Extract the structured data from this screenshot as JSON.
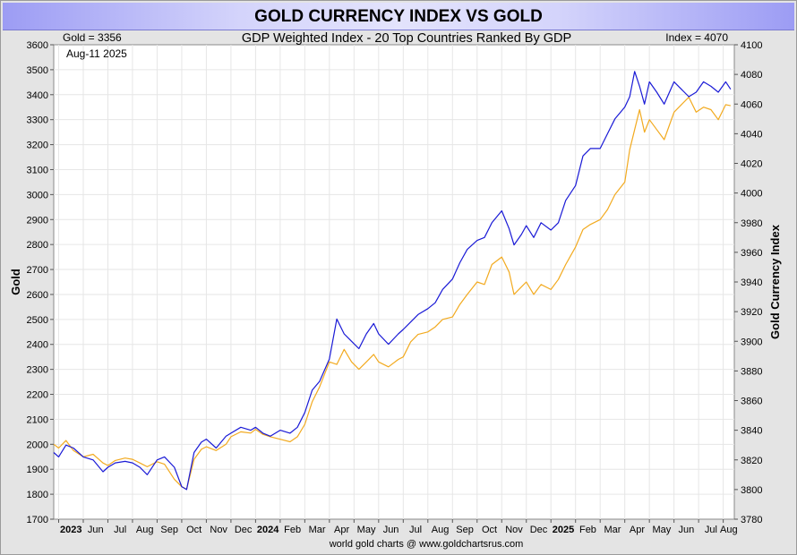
{
  "chart_data": {
    "type": "line",
    "title": "GOLD CURRENCY INDEX VS GOLD",
    "subtitle": "GDP Weighted Index - 20 Top Countries Ranked By GDP",
    "readout_left": "Gold = 3356",
    "readout_right": "Index = 4070",
    "date_label": "Aug-11  2025",
    "footer": "world gold charts @ www.goldchartsrus.com",
    "ylabel_left": "Gold",
    "ylabel_right": "Gold Currency Index",
    "ylim_left": [
      1700,
      3600
    ],
    "ylim_right": [
      3780,
      4100
    ],
    "y_ticks_left": [
      "1700",
      "1800",
      "1900",
      "2000",
      "2100",
      "2200",
      "2300",
      "2400",
      "2500",
      "2600",
      "2700",
      "2800",
      "2900",
      "3000",
      "3100",
      "3200",
      "3300",
      "3400",
      "3500",
      "3600"
    ],
    "y_ticks_right": [
      "3780",
      "3800",
      "3820",
      "3840",
      "3860",
      "3880",
      "3900",
      "3920",
      "3940",
      "3960",
      "3980",
      "4000",
      "4020",
      "4040",
      "4060",
      "4080",
      "4100"
    ],
    "x_ticks": [
      {
        "label": "2023",
        "bold": true,
        "t": 0.0
      },
      {
        "label": "Jun",
        "bold": false,
        "t": 1.0
      },
      {
        "label": "Jul",
        "bold": false,
        "t": 2.0
      },
      {
        "label": "Aug",
        "bold": false,
        "t": 3.0
      },
      {
        "label": "Sep",
        "bold": false,
        "t": 4.0
      },
      {
        "label": "Oct",
        "bold": false,
        "t": 5.0
      },
      {
        "label": "Nov",
        "bold": false,
        "t": 6.0
      },
      {
        "label": "Dec",
        "bold": false,
        "t": 7.0
      },
      {
        "label": "2024",
        "bold": true,
        "t": 8.0
      },
      {
        "label": "Feb",
        "bold": false,
        "t": 9.0
      },
      {
        "label": "Mar",
        "bold": false,
        "t": 10.0
      },
      {
        "label": "Apr",
        "bold": false,
        "t": 11.0
      },
      {
        "label": "May",
        "bold": false,
        "t": 12.0
      },
      {
        "label": "Jun",
        "bold": false,
        "t": 13.0
      },
      {
        "label": "Jul",
        "bold": false,
        "t": 14.0
      },
      {
        "label": "Aug",
        "bold": false,
        "t": 15.0
      },
      {
        "label": "Sep",
        "bold": false,
        "t": 16.0
      },
      {
        "label": "Oct",
        "bold": false,
        "t": 17.0
      },
      {
        "label": "Nov",
        "bold": false,
        "t": 18.0
      },
      {
        "label": "Dec",
        "bold": false,
        "t": 19.0
      },
      {
        "label": "2025",
        "bold": true,
        "t": 20.0
      },
      {
        "label": "Feb",
        "bold": false,
        "t": 21.0
      },
      {
        "label": "Mar",
        "bold": false,
        "t": 22.0
      },
      {
        "label": "Apr",
        "bold": false,
        "t": 23.0
      },
      {
        "label": "May",
        "bold": false,
        "t": 24.0
      },
      {
        "label": "Jun",
        "bold": false,
        "t": 25.0
      },
      {
        "label": "Jul",
        "bold": false,
        "t": 26.0
      },
      {
        "label": "Aug",
        "bold": false,
        "t": 27.0
      }
    ],
    "x_range": [
      -0.2,
      27.45
    ],
    "series": [
      {
        "name": "",
        "axis": "left",
        "color": "#f2aa1f",
        "points": [
          [
            -0.2,
            2000
          ],
          [
            0.0,
            1985
          ],
          [
            0.3,
            2015
          ],
          [
            0.6,
            1975
          ],
          [
            1.0,
            1950
          ],
          [
            1.4,
            1960
          ],
          [
            1.8,
            1925
          ],
          [
            2.0,
            1915
          ],
          [
            2.3,
            1935
          ],
          [
            2.7,
            1945
          ],
          [
            3.0,
            1940
          ],
          [
            3.3,
            1925
          ],
          [
            3.6,
            1910
          ],
          [
            4.0,
            1930
          ],
          [
            4.3,
            1920
          ],
          [
            4.7,
            1860
          ],
          [
            5.0,
            1830
          ],
          [
            5.2,
            1820
          ],
          [
            5.5,
            1940
          ],
          [
            5.8,
            1980
          ],
          [
            6.0,
            1990
          ],
          [
            6.4,
            1975
          ],
          [
            6.8,
            2000
          ],
          [
            7.0,
            2030
          ],
          [
            7.4,
            2050
          ],
          [
            7.8,
            2045
          ],
          [
            8.0,
            2060
          ],
          [
            8.3,
            2040
          ],
          [
            8.6,
            2030
          ],
          [
            9.0,
            2020
          ],
          [
            9.4,
            2010
          ],
          [
            9.7,
            2030
          ],
          [
            10.0,
            2080
          ],
          [
            10.3,
            2170
          ],
          [
            10.6,
            2230
          ],
          [
            11.0,
            2330
          ],
          [
            11.3,
            2320
          ],
          [
            11.6,
            2380
          ],
          [
            11.9,
            2330
          ],
          [
            12.2,
            2300
          ],
          [
            12.5,
            2330
          ],
          [
            12.8,
            2360
          ],
          [
            13.0,
            2330
          ],
          [
            13.4,
            2310
          ],
          [
            13.8,
            2340
          ],
          [
            14.0,
            2350
          ],
          [
            14.3,
            2410
          ],
          [
            14.6,
            2440
          ],
          [
            15.0,
            2450
          ],
          [
            15.3,
            2470
          ],
          [
            15.6,
            2500
          ],
          [
            16.0,
            2510
          ],
          [
            16.3,
            2560
          ],
          [
            16.6,
            2600
          ],
          [
            17.0,
            2650
          ],
          [
            17.3,
            2640
          ],
          [
            17.6,
            2720
          ],
          [
            18.0,
            2750
          ],
          [
            18.3,
            2690
          ],
          [
            18.5,
            2600
          ],
          [
            18.8,
            2630
          ],
          [
            19.0,
            2650
          ],
          [
            19.3,
            2600
          ],
          [
            19.6,
            2640
          ],
          [
            20.0,
            2620
          ],
          [
            20.3,
            2660
          ],
          [
            20.6,
            2720
          ],
          [
            21.0,
            2790
          ],
          [
            21.3,
            2860
          ],
          [
            21.6,
            2880
          ],
          [
            22.0,
            2900
          ],
          [
            22.3,
            2940
          ],
          [
            22.6,
            3000
          ],
          [
            23.0,
            3050
          ],
          [
            23.2,
            3180
          ],
          [
            23.4,
            3260
          ],
          [
            23.6,
            3340
          ],
          [
            23.8,
            3250
          ],
          [
            24.0,
            3300
          ],
          [
            24.3,
            3260
          ],
          [
            24.6,
            3220
          ],
          [
            25.0,
            3330
          ],
          [
            25.3,
            3360
          ],
          [
            25.6,
            3390
          ],
          [
            25.9,
            3330
          ],
          [
            26.2,
            3350
          ],
          [
            26.5,
            3340
          ],
          [
            26.8,
            3300
          ],
          [
            27.1,
            3360
          ],
          [
            27.3,
            3356
          ]
        ]
      },
      {
        "name": "",
        "axis": "right",
        "color": "#1a1ad6",
        "points": [
          [
            -0.2,
            3825
          ],
          [
            0.0,
            3822
          ],
          [
            0.3,
            3830
          ],
          [
            0.6,
            3828
          ],
          [
            1.0,
            3822
          ],
          [
            1.4,
            3820
          ],
          [
            1.8,
            3812
          ],
          [
            2.0,
            3815
          ],
          [
            2.3,
            3818
          ],
          [
            2.7,
            3819
          ],
          [
            3.0,
            3818
          ],
          [
            3.3,
            3815
          ],
          [
            3.6,
            3810
          ],
          [
            4.0,
            3820
          ],
          [
            4.3,
            3822
          ],
          [
            4.7,
            3815
          ],
          [
            5.0,
            3802
          ],
          [
            5.2,
            3800
          ],
          [
            5.5,
            3825
          ],
          [
            5.8,
            3832
          ],
          [
            6.0,
            3834
          ],
          [
            6.4,
            3828
          ],
          [
            6.8,
            3836
          ],
          [
            7.0,
            3838
          ],
          [
            7.4,
            3842
          ],
          [
            7.8,
            3840
          ],
          [
            8.0,
            3842
          ],
          [
            8.3,
            3838
          ],
          [
            8.6,
            3836
          ],
          [
            9.0,
            3840
          ],
          [
            9.4,
            3838
          ],
          [
            9.7,
            3842
          ],
          [
            10.0,
            3852
          ],
          [
            10.3,
            3867
          ],
          [
            10.6,
            3873
          ],
          [
            11.0,
            3888
          ],
          [
            11.3,
            3915
          ],
          [
            11.6,
            3905
          ],
          [
            11.9,
            3900
          ],
          [
            12.2,
            3895
          ],
          [
            12.5,
            3905
          ],
          [
            12.8,
            3912
          ],
          [
            13.0,
            3905
          ],
          [
            13.4,
            3898
          ],
          [
            13.8,
            3905
          ],
          [
            14.0,
            3908
          ],
          [
            14.3,
            3913
          ],
          [
            14.6,
            3918
          ],
          [
            15.0,
            3922
          ],
          [
            15.3,
            3926
          ],
          [
            15.6,
            3935
          ],
          [
            16.0,
            3942
          ],
          [
            16.3,
            3953
          ],
          [
            16.6,
            3962
          ],
          [
            17.0,
            3968
          ],
          [
            17.3,
            3970
          ],
          [
            17.6,
            3980
          ],
          [
            18.0,
            3988
          ],
          [
            18.3,
            3976
          ],
          [
            18.5,
            3965
          ],
          [
            18.8,
            3972
          ],
          [
            19.0,
            3978
          ],
          [
            19.3,
            3970
          ],
          [
            19.6,
            3980
          ],
          [
            20.0,
            3975
          ],
          [
            20.3,
            3980
          ],
          [
            20.6,
            3995
          ],
          [
            21.0,
            4005
          ],
          [
            21.3,
            4025
          ],
          [
            21.6,
            4030
          ],
          [
            22.0,
            4030
          ],
          [
            22.3,
            4040
          ],
          [
            22.6,
            4050
          ],
          [
            23.0,
            4058
          ],
          [
            23.2,
            4065
          ],
          [
            23.4,
            4082
          ],
          [
            23.6,
            4072
          ],
          [
            23.8,
            4060
          ],
          [
            24.0,
            4075
          ],
          [
            24.3,
            4068
          ],
          [
            24.6,
            4060
          ],
          [
            25.0,
            4075
          ],
          [
            25.3,
            4070
          ],
          [
            25.6,
            4065
          ],
          [
            25.9,
            4068
          ],
          [
            26.2,
            4075
          ],
          [
            26.5,
            4072
          ],
          [
            26.8,
            4068
          ],
          [
            27.1,
            4075
          ],
          [
            27.3,
            4070
          ]
        ]
      }
    ]
  }
}
